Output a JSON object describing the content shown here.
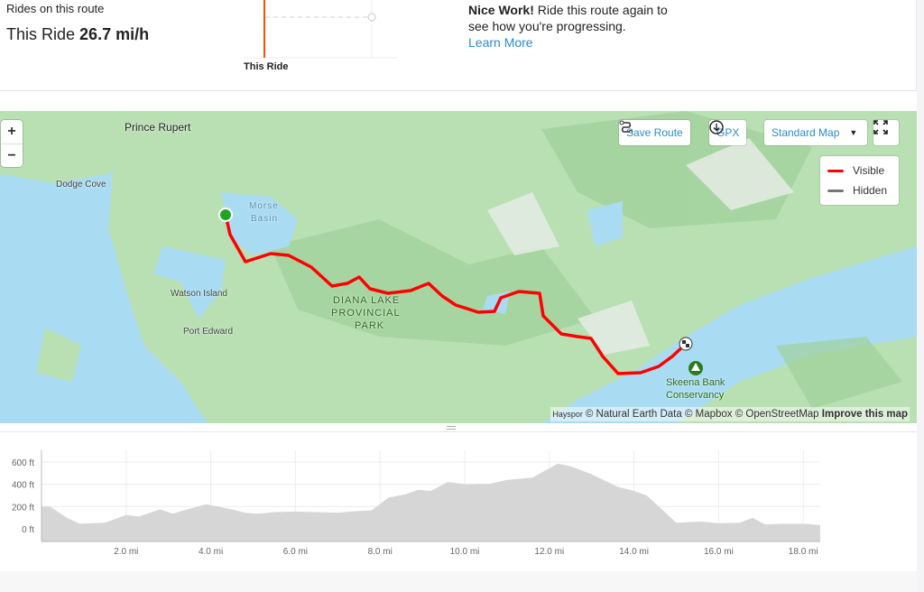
{
  "summary": {
    "rides_label": "Rides on this route",
    "this_ride_prefix": "This Ride",
    "this_ride_speed": "26.7 mi/h",
    "chart_label": "This Ride"
  },
  "promo": {
    "bold": "Nice Work!",
    "text": " Ride this route again to see how you're progressing.",
    "link": "Learn More"
  },
  "map": {
    "zoom_in": "+",
    "zoom_out": "−",
    "save_route": "Save Route",
    "gpx": "GPX",
    "map_style": "Standard Map",
    "legend": [
      {
        "label": "Visible",
        "color": "#ff0000"
      },
      {
        "label": "Hidden",
        "color": "#777777"
      }
    ],
    "places": {
      "prince_rupert": "Prince Rupert",
      "dodge_cove": "Dodge Cove",
      "morse": "Morse",
      "basin": "Basin",
      "watson": "Watson Island",
      "port_edward": "Port Edward",
      "park1": "DIANA LAKE",
      "park2": "PROVINCIAL",
      "park3": "PARK",
      "skeena1": "Skeena Bank",
      "skeena2": "Conservancy"
    },
    "attribution": {
      "hayspo": "Hayspor",
      "text": "© Natural Earth Data © Mapbox © OpenStreetMap ",
      "improve": "Improve this map"
    },
    "route_color": "#ff0000",
    "start_color": "#1fa51f"
  },
  "chart_data": {
    "type": "area",
    "xlabel": "",
    "ylabel": "",
    "x_ticks": [
      "2.0 mi",
      "4.0 mi",
      "6.0 mi",
      "8.0 mi",
      "10.0 mi",
      "12.0 mi",
      "14.0 mi",
      "16.0 mi",
      "18.0 mi"
    ],
    "y_ticks": [
      "600 ft",
      "400 ft",
      "200 ft",
      "0 ft"
    ],
    "xlim": [
      0,
      18.4
    ],
    "ylim": [
      -120,
      700
    ],
    "grid": true,
    "x": [
      0,
      0.2,
      0.6,
      0.9,
      1.5,
      2.0,
      2.3,
      2.8,
      3.1,
      3.4,
      3.9,
      4.5,
      4.8,
      5.1,
      5.5,
      6.0,
      6.5,
      7.0,
      7.5,
      7.8,
      8.2,
      8.6,
      8.9,
      9.2,
      9.6,
      10.0,
      10.6,
      11.0,
      11.6,
      12.2,
      12.5,
      13.0,
      13.6,
      14.0,
      14.3,
      15.0,
      15.6,
      16.0,
      16.5,
      16.8,
      17.1,
      17.5,
      18.0,
      18.4
    ],
    "y": [
      200,
      200,
      100,
      45,
      55,
      125,
      110,
      175,
      135,
      170,
      220,
      175,
      145,
      135,
      150,
      155,
      150,
      145,
      160,
      165,
      280,
      310,
      350,
      340,
      420,
      400,
      405,
      440,
      460,
      585,
      560,
      490,
      380,
      340,
      300,
      55,
      65,
      50,
      55,
      100,
      40,
      45,
      45,
      35
    ]
  }
}
